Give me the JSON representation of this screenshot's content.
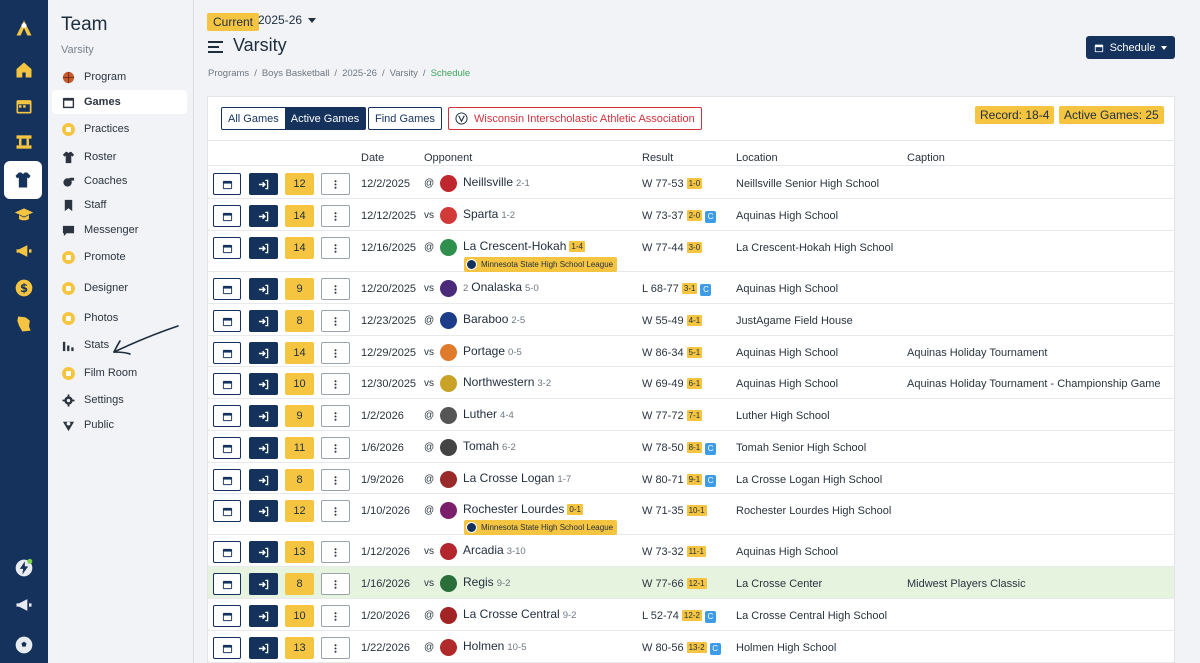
{
  "sidebar": {
    "title": "Team",
    "subtitle": "Varsity",
    "items": [
      {
        "label": "Program",
        "icon": "basketball-icon",
        "locked": false,
        "active": false
      },
      {
        "label": "Games",
        "icon": "calendar-icon",
        "locked": false,
        "active": true
      },
      {
        "label": "Practices",
        "icon": "lock-icon",
        "locked": true,
        "active": false
      },
      {
        "label": "Roster",
        "icon": "jersey-icon",
        "locked": false,
        "active": false
      },
      {
        "label": "Coaches",
        "icon": "whistle-icon",
        "locked": false,
        "active": false
      },
      {
        "label": "Staff",
        "icon": "bookmark-icon",
        "locked": false,
        "active": false
      },
      {
        "label": "Messenger",
        "icon": "chat-icon",
        "locked": false,
        "active": false
      },
      {
        "label": "Promote",
        "icon": "lock-icon",
        "locked": true,
        "active": false
      },
      {
        "label": "Designer",
        "icon": "lock-icon",
        "locked": true,
        "active": false
      },
      {
        "label": "Photos",
        "icon": "lock-icon",
        "locked": true,
        "active": false
      },
      {
        "label": "Stats",
        "icon": "bar-chart-icon",
        "locked": false,
        "active": false
      },
      {
        "label": "Film Room",
        "icon": "lock-icon",
        "locked": true,
        "active": false
      },
      {
        "label": "Settings",
        "icon": "gear-icon",
        "locked": false,
        "active": false
      },
      {
        "label": "Public",
        "icon": "globe-icon",
        "locked": false,
        "active": false
      }
    ]
  },
  "header": {
    "season_badge": "Current",
    "season": "2025-26",
    "title": "Varsity",
    "breadcrumb": [
      "Programs",
      "Boys Basketball",
      "2025-26",
      "Varsity",
      "Schedule"
    ],
    "schedule_button": "Schedule"
  },
  "toolbar": {
    "all_games": "All Games",
    "active_games": "Active Games",
    "find_games": "Find Games",
    "association": "Wisconsin Interscholastic Athletic Association",
    "record": "Record: 18-4",
    "active_count": "Active Games: 25"
  },
  "table": {
    "headers": {
      "date": "Date",
      "opponent": "Opponent",
      "result": "Result",
      "location": "Location",
      "caption": "Caption"
    },
    "rows": [
      {
        "num": "12",
        "date": "12/2/2025",
        "ha": "@",
        "opponent": "Neillsville",
        "opp_record": "2-1",
        "rec_badge": "",
        "league": "",
        "result": "W 77-53",
        "score_badge": "1-0",
        "conf": "",
        "location": "Neillsville Senior High School",
        "caption": "",
        "logo_color": "#c0262d",
        "highlight": false
      },
      {
        "num": "14",
        "date": "12/12/2025",
        "ha": "vs",
        "opponent": "Sparta",
        "opp_record": "1-2",
        "rec_badge": "",
        "league": "",
        "result": "W 73-37",
        "score_badge": "2-0",
        "conf": "C",
        "location": "Aquinas High School",
        "caption": "",
        "logo_color": "#d23a3a",
        "highlight": false
      },
      {
        "num": "14",
        "date": "12/16/2025",
        "ha": "@",
        "opponent": "La Crescent-Hokah",
        "opp_record": "",
        "rec_badge": "1-4",
        "league": "Minnesota State High School League",
        "result": "W 77-44",
        "score_badge": "3-0",
        "conf": "",
        "location": "La Crescent-Hokah High School",
        "caption": "",
        "logo_color": "#2f8f4e",
        "highlight": false
      },
      {
        "num": "9",
        "date": "12/20/2025",
        "ha": "vs",
        "opponent": "Onalaska",
        "opp_prefix": "2",
        "opp_record": "5-0",
        "rec_badge": "",
        "league": "",
        "result": "L 68-77",
        "score_badge": "3-1",
        "conf": "C",
        "location": "Aquinas High School",
        "caption": "",
        "logo_color": "#4b2a7a",
        "highlight": false
      },
      {
        "num": "8",
        "date": "12/23/2025",
        "ha": "@",
        "opponent": "Baraboo",
        "opp_record": "2-5",
        "rec_badge": "",
        "league": "",
        "result": "W 55-49",
        "score_badge": "4-1",
        "conf": "",
        "location": "JustAgame Field House",
        "caption": "",
        "logo_color": "#1d3c8a",
        "highlight": false
      },
      {
        "num": "14",
        "date": "12/29/2025",
        "ha": "vs",
        "opponent": "Portage",
        "opp_record": "0-5",
        "rec_badge": "",
        "league": "",
        "result": "W 86-34",
        "score_badge": "5-1",
        "conf": "",
        "location": "Aquinas High School",
        "caption": "Aquinas Holiday Tournament",
        "logo_color": "#e07b2c",
        "highlight": false
      },
      {
        "num": "10",
        "date": "12/30/2025",
        "ha": "vs",
        "opponent": "Northwestern",
        "opp_record": "3-2",
        "rec_badge": "",
        "league": "",
        "result": "W 69-49",
        "score_badge": "6-1",
        "conf": "",
        "location": "Aquinas High School",
        "caption": "Aquinas Holiday Tournament - Championship Game",
        "logo_color": "#c9a227",
        "highlight": false
      },
      {
        "num": "9",
        "date": "1/2/2026",
        "ha": "@",
        "opponent": "Luther",
        "opp_record": "4-4",
        "rec_badge": "",
        "league": "",
        "result": "W 77-72",
        "score_badge": "7-1",
        "conf": "",
        "location": "Luther High School",
        "caption": "",
        "logo_color": "#555555",
        "highlight": false
      },
      {
        "num": "11",
        "date": "1/6/2026",
        "ha": "@",
        "opponent": "Tomah",
        "opp_record": "6-2",
        "rec_badge": "",
        "league": "",
        "result": "W 78-50",
        "score_badge": "8-1",
        "conf": "C",
        "location": "Tomah Senior High School",
        "caption": "",
        "logo_color": "#444444",
        "highlight": false
      },
      {
        "num": "8",
        "date": "1/9/2026",
        "ha": "@",
        "opponent": "La Crosse Logan",
        "opp_record": "1-7",
        "rec_badge": "",
        "league": "",
        "result": "W 80-71",
        "score_badge": "9-1",
        "conf": "C",
        "location": "La Crosse Logan High School",
        "caption": "",
        "logo_color": "#9a2a2a",
        "highlight": false
      },
      {
        "num": "12",
        "date": "1/10/2026",
        "ha": "@",
        "opponent": "Rochester Lourdes",
        "opp_record": "",
        "rec_badge": "0-1",
        "league": "Minnesota State High School League",
        "result": "W 71-35",
        "score_badge": "10-1",
        "conf": "",
        "location": "Rochester Lourdes High School",
        "caption": "",
        "logo_color": "#7a1f6a",
        "highlight": false
      },
      {
        "num": "13",
        "date": "1/12/2026",
        "ha": "vs",
        "opponent": "Arcadia",
        "opp_record": "3-10",
        "rec_badge": "",
        "league": "",
        "result": "W 73-32",
        "score_badge": "11-1",
        "conf": "",
        "location": "Aquinas High School",
        "caption": "",
        "logo_color": "#b3262d",
        "highlight": false
      },
      {
        "num": "8",
        "date": "1/16/2026",
        "ha": "vs",
        "opponent": "Regis",
        "opp_record": "9-2",
        "rec_badge": "",
        "league": "",
        "result": "W 77-66",
        "score_badge": "12-1",
        "conf": "",
        "location": "La Crosse Center",
        "caption": "Midwest Players Classic",
        "logo_color": "#2a6f3a",
        "highlight": true
      },
      {
        "num": "10",
        "date": "1/20/2026",
        "ha": "@",
        "opponent": "La Crosse Central",
        "opp_record": "9-2",
        "rec_badge": "",
        "league": "",
        "result": "L 52-74",
        "score_badge": "12-2",
        "conf": "C",
        "location": "La Crosse Central High School",
        "caption": "",
        "logo_color": "#a32424",
        "highlight": false
      },
      {
        "num": "13",
        "date": "1/22/2026",
        "ha": "@",
        "opponent": "Holmen",
        "opp_record": "10-5",
        "rec_badge": "",
        "league": "",
        "result": "W 80-56",
        "score_badge": "13-2",
        "conf": "C",
        "location": "Holmen High School",
        "caption": "",
        "logo_color": "#b02a2a",
        "highlight": false
      }
    ]
  }
}
